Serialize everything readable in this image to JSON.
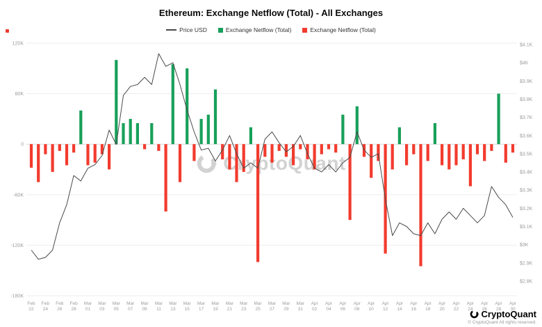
{
  "header": {
    "title": "Ethereum: Exchange Netflow (Total) - All Exchanges"
  },
  "legend": [
    {
      "label": "Price USD",
      "type": "line",
      "color": "#4a4a4a"
    },
    {
      "label": "Exchange Netflow (Total)",
      "type": "bar-positive",
      "color": "#18a05a"
    },
    {
      "label": "Exchange Netflow (Total)",
      "type": "bar-negative",
      "color": "#f23b2e"
    }
  ],
  "watermark": {
    "text": "CryptoQuant"
  },
  "footer": {
    "brand": "CryptoQuant",
    "copyright": "© CryptoQuant All rights reserved."
  },
  "chart_data": {
    "type": "bar+line",
    "title": "Ethereum: Exchange Netflow (Total) - All Exchanges",
    "legend_position": "top",
    "grid": true,
    "x_label_every": 2,
    "x": [
      "Feb 22",
      "Feb 23",
      "Feb 24",
      "Feb 25",
      "Feb 26",
      "Feb 27",
      "Feb 28",
      "Feb 29",
      "Mar 01",
      "Mar 02",
      "Mar 03",
      "Mar 04",
      "Mar 05",
      "Mar 06",
      "Mar 07",
      "Mar 08",
      "Mar 09",
      "Mar 10",
      "Mar 11",
      "Mar 12",
      "Mar 13",
      "Mar 14",
      "Mar 15",
      "Mar 16",
      "Mar 17",
      "Mar 18",
      "Mar 19",
      "Mar 20",
      "Mar 21",
      "Mar 22",
      "Mar 23",
      "Mar 24",
      "Mar 25",
      "Mar 26",
      "Mar 27",
      "Mar 28",
      "Mar 29",
      "Mar 30",
      "Mar 31",
      "Apr 01",
      "Apr 02",
      "Apr 03",
      "Apr 04",
      "Apr 05",
      "Apr 06",
      "Apr 07",
      "Apr 08",
      "Apr 09",
      "Apr 10",
      "Apr 11",
      "Apr 12",
      "Apr 13",
      "Apr 14",
      "Apr 15",
      "Apr 16",
      "Apr 17",
      "Apr 18",
      "Apr 19",
      "Apr 20",
      "Apr 21",
      "Apr 22",
      "Apr 23",
      "Apr 24",
      "Apr 25",
      "Apr 26",
      "Apr 27",
      "Apr 28",
      "Apr 29",
      "Apr 30"
    ],
    "series": [
      {
        "name": "Exchange Netflow (Total)",
        "type": "bar",
        "axis": "left",
        "values": [
          -28,
          -45,
          -12,
          -33,
          -8,
          -25,
          -10,
          40,
          -25,
          -22,
          -12,
          -30,
          100,
          25,
          30,
          25,
          -6,
          25,
          -8,
          -80,
          95,
          -45,
          90,
          -20,
          30,
          35,
          65,
          -18,
          -30,
          -45,
          -33,
          20,
          -140,
          -15,
          -22,
          -8,
          -15,
          -25,
          -6,
          -18,
          -30,
          -12,
          -6,
          -10,
          35,
          -90,
          45,
          -15,
          -40,
          -20,
          -130,
          -30,
          20,
          -25,
          -12,
          -145,
          -20,
          25,
          -25,
          -30,
          -25,
          -18,
          -50,
          -12,
          -20,
          -8,
          60,
          -22,
          -10
        ]
      },
      {
        "name": "Price USD",
        "type": "line",
        "axis": "right",
        "values": [
          2.97,
          2.92,
          2.93,
          2.97,
          3.12,
          3.22,
          3.38,
          3.35,
          3.42,
          3.44,
          3.49,
          3.63,
          3.55,
          3.82,
          3.87,
          3.88,
          3.92,
          3.88,
          4.05,
          3.98,
          4.0,
          3.88,
          3.74,
          3.62,
          3.52,
          3.53,
          3.46,
          3.52,
          3.6,
          3.5,
          3.42,
          3.45,
          3.42,
          3.58,
          3.62,
          3.56,
          3.51,
          3.54,
          3.6,
          3.5,
          3.42,
          3.4,
          3.44,
          3.4,
          3.45,
          3.48,
          3.62,
          3.52,
          3.48,
          3.5,
          3.25,
          3.05,
          3.12,
          3.1,
          3.06,
          3.05,
          3.12,
          3.06,
          3.14,
          3.18,
          3.14,
          3.2,
          3.16,
          3.12,
          3.16,
          3.32,
          3.26,
          3.22,
          3.15
        ]
      }
    ],
    "left_axis": {
      "min": -180,
      "max": 120,
      "ticks": [
        {
          "label": "120K",
          "value": 120
        },
        {
          "label": "60K",
          "value": 60
        },
        {
          "label": "0",
          "value": 0
        },
        {
          "label": "-60K",
          "value": -60
        },
        {
          "label": "-120K",
          "value": -120
        },
        {
          "label": "-180K",
          "value": -180
        }
      ]
    },
    "right_axis": {
      "min": 2.8,
      "max": 4.1,
      "ticks": [
        {
          "label": "$4.1K",
          "value": 4.1
        },
        {
          "label": "$4K",
          "value": 4.0
        },
        {
          "label": "$3.9K",
          "value": 3.9
        },
        {
          "label": "$3.8K",
          "value": 3.8
        },
        {
          "label": "$3.7K",
          "value": 3.7
        },
        {
          "label": "$3.6K",
          "value": 3.6
        },
        {
          "label": "$3.5K",
          "value": 3.5
        },
        {
          "label": "$3.4K",
          "value": 3.4
        },
        {
          "label": "$3.3K",
          "value": 3.3
        },
        {
          "label": "$3.2K",
          "value": 3.2
        },
        {
          "label": "$3.1K",
          "value": 3.1
        },
        {
          "label": "$3K",
          "value": 3.0
        },
        {
          "label": "$2.9K",
          "value": 2.9
        },
        {
          "label": "$2.8K",
          "value": 2.8
        }
      ]
    },
    "colors": {
      "positive": "#18a05a",
      "negative": "#f23b2e",
      "price": "#4a4a4a",
      "grid": "#ededed",
      "zero_line": "#d9d9d9",
      "axis_text": "#9b9b9b"
    }
  }
}
